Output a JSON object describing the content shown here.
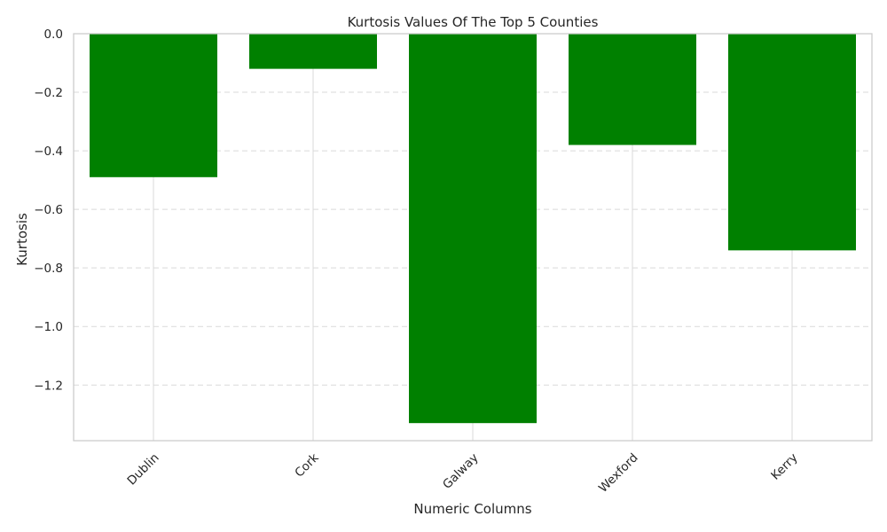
{
  "chart_data": {
    "type": "bar",
    "title": "Kurtosis Values Of The Top 5 Counties",
    "xlabel": "Numeric Columns",
    "ylabel": "Kurtosis",
    "categories": [
      "Dublin",
      "Cork",
      "Galway",
      "Wexford",
      "Kerry"
    ],
    "values": [
      -0.49,
      -0.12,
      -1.33,
      -0.38,
      -0.74
    ],
    "ylim": [
      -1.39,
      0.0
    ],
    "yticks": [
      0.0,
      -0.2,
      -0.4,
      -0.6,
      -0.8,
      -1.0,
      -1.2
    ],
    "ytick_labels": [
      "0.0",
      "−0.2",
      "−0.4",
      "−0.6",
      "−0.8",
      "−1.0",
      "−1.2"
    ],
    "grid": {
      "y": true,
      "y_style": "dashed",
      "x": true
    },
    "bar_color": "#008000",
    "grid_color": "#d9d9d9",
    "spine_color": "#cccccc"
  }
}
